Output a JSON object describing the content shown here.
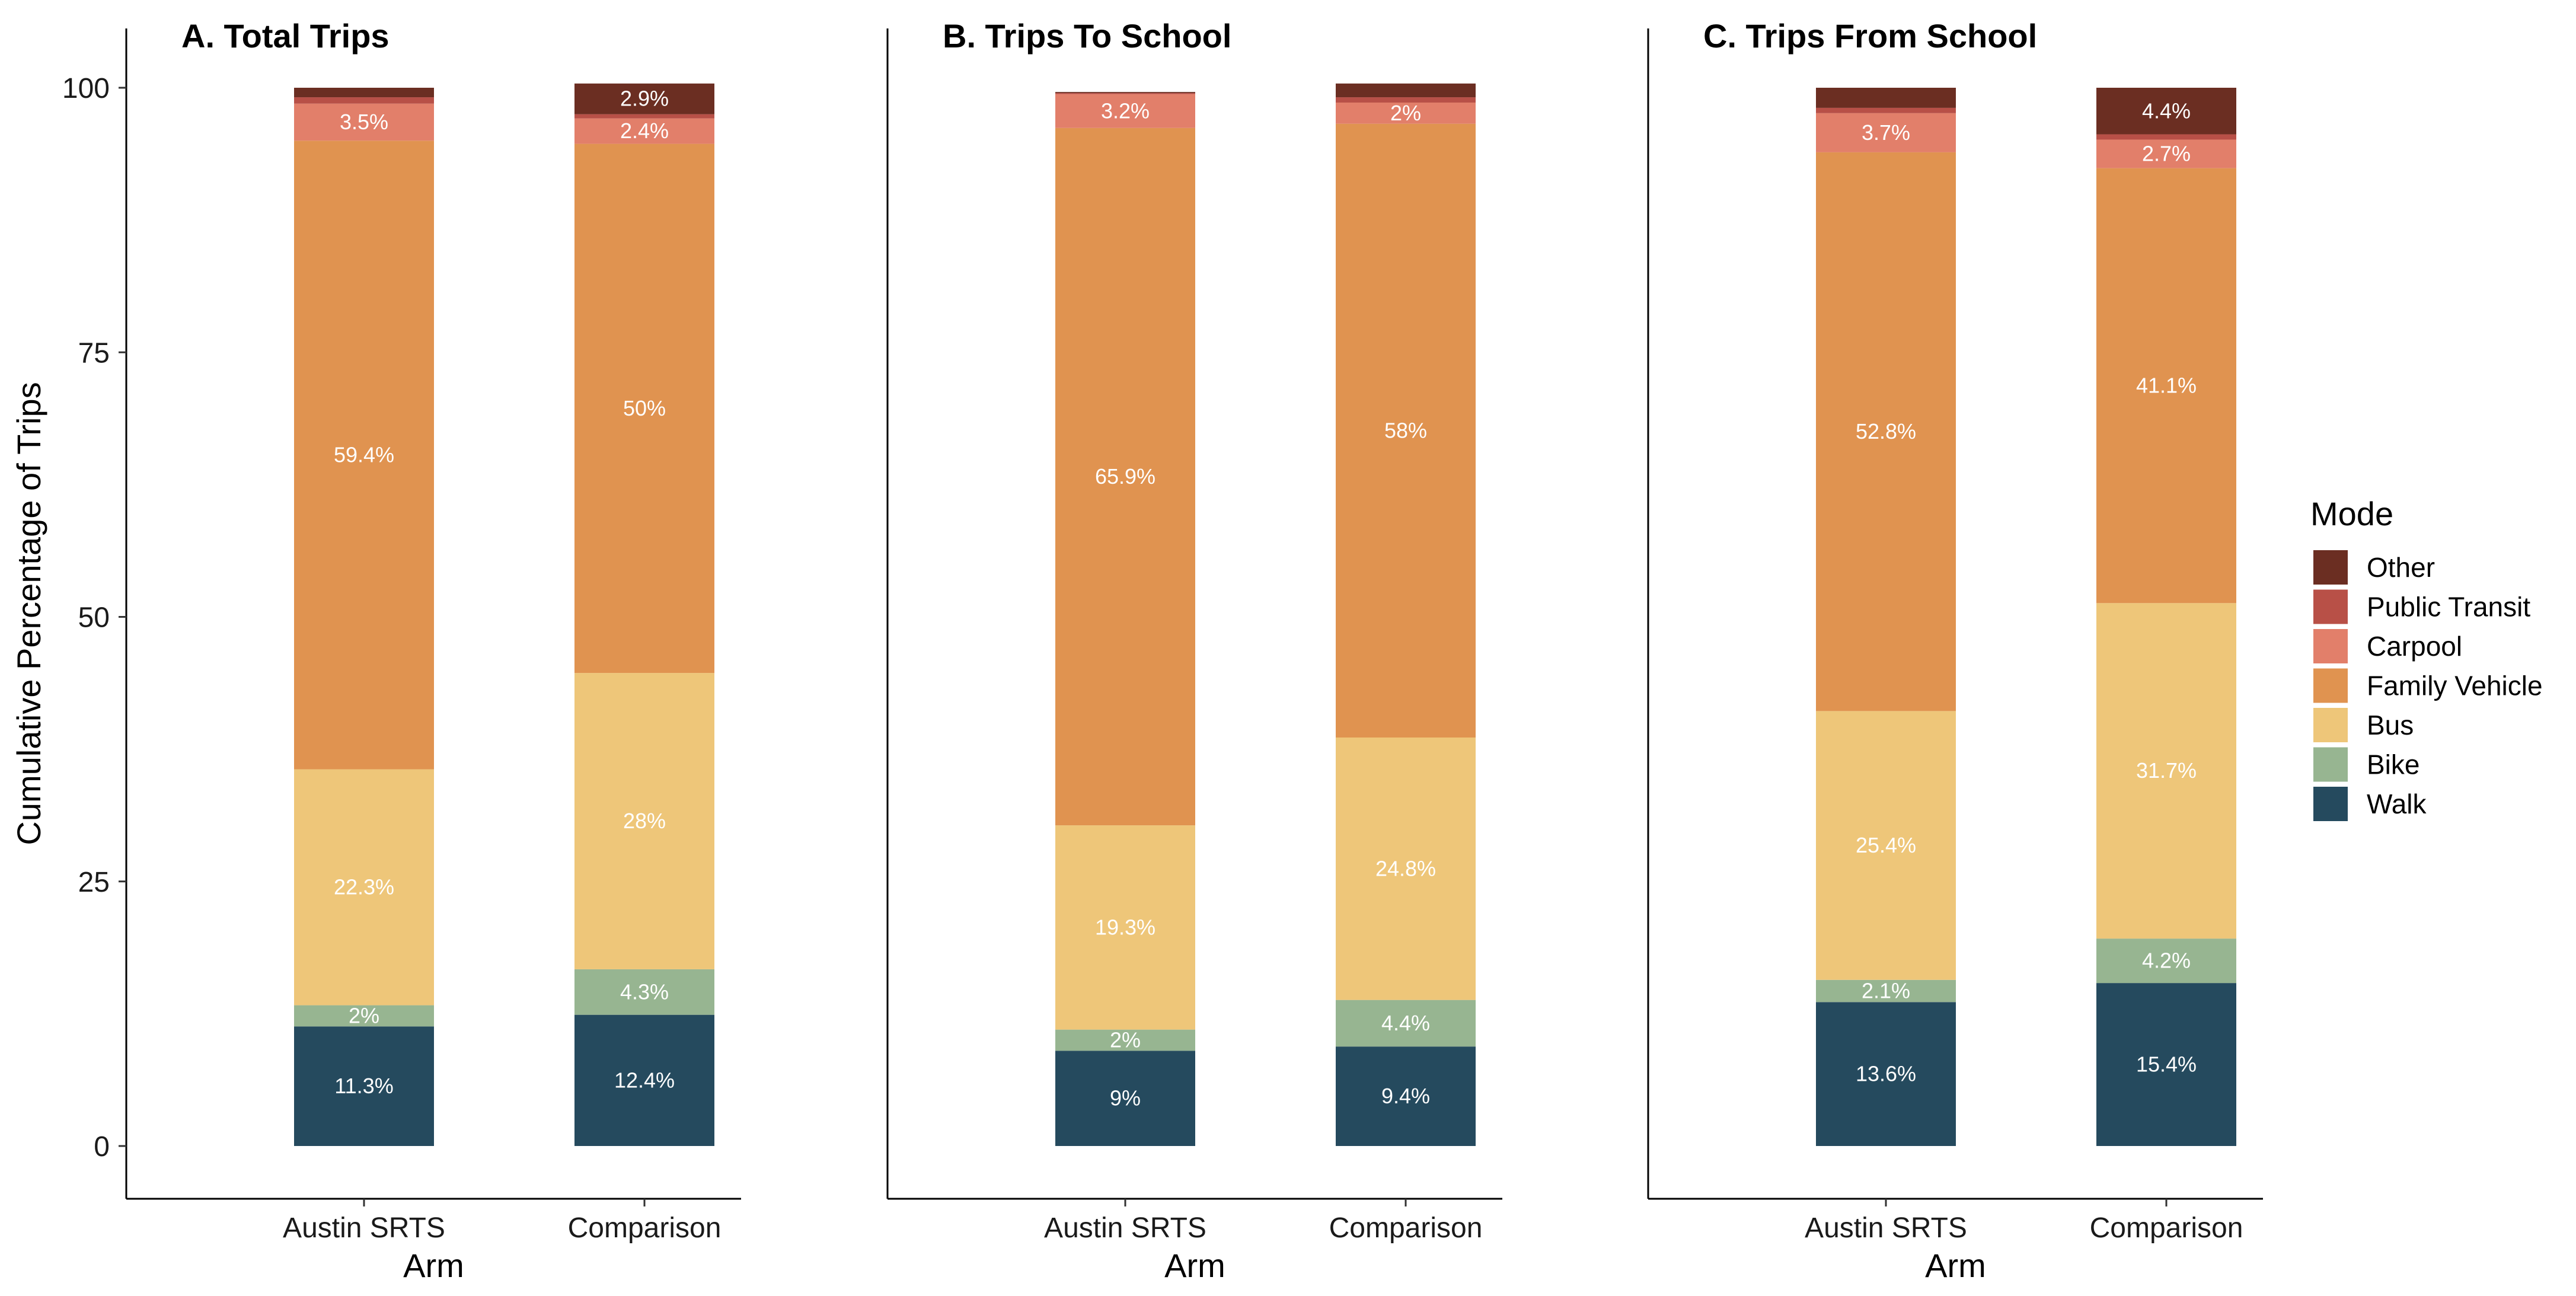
{
  "figure": {
    "ylabel": "Cumulative Percentage of Trips",
    "xlabel": "Arm",
    "legend_title": "Mode"
  },
  "chart_data": {
    "type": "bar",
    "stacked": true,
    "ylabel": "Cumulative Percentage of Trips",
    "xlabel": "Arm",
    "ylim": [
      0,
      100
    ],
    "yticks": [
      0,
      25,
      50,
      75,
      100
    ],
    "legend": {
      "title": "Mode",
      "placement": "right",
      "entries": [
        {
          "name": "Other",
          "color": "#6b2e22"
        },
        {
          "name": "Public Transit",
          "color": "#b85047"
        },
        {
          "name": "Carpool",
          "color": "#e27f6a"
        },
        {
          "name": "Family Vehicle",
          "color": "#e09350"
        },
        {
          "name": "Bus",
          "color": "#eec679"
        },
        {
          "name": "Bike",
          "color": "#97b591"
        },
        {
          "name": "Walk",
          "color": "#254a5e"
        }
      ]
    },
    "stack_order": [
      "Walk",
      "Bike",
      "Bus",
      "Family Vehicle",
      "Carpool",
      "Public Transit",
      "Other"
    ],
    "categories": [
      "Austin SRTS",
      "Comparison"
    ],
    "panels": [
      {
        "title": "A. Total Trips",
        "bars": [
          {
            "category": "Austin SRTS",
            "values": {
              "Walk": 11.3,
              "Bike": 2.0,
              "Bus": 22.3,
              "Family Vehicle": 59.4,
              "Carpool": 3.5,
              "Public Transit": 0.6,
              "Other": 0.9
            },
            "labels": {
              "Walk": "11.3%",
              "Bike": "2%",
              "Bus": "22.3%",
              "Family Vehicle": "59.4%",
              "Carpool": "3.5%"
            }
          },
          {
            "category": "Comparison",
            "values": {
              "Walk": 12.4,
              "Bike": 4.3,
              "Bus": 28.0,
              "Family Vehicle": 50.0,
              "Carpool": 2.4,
              "Public Transit": 0.4,
              "Other": 2.9
            },
            "labels": {
              "Walk": "12.4%",
              "Bike": "4.3%",
              "Bus": "28%",
              "Family Vehicle": "50%",
              "Carpool": "2.4%",
              "Other": "2.9%"
            }
          }
        ]
      },
      {
        "title": "B. Trips To School",
        "bars": [
          {
            "category": "Austin SRTS",
            "values": {
              "Walk": 9.0,
              "Bike": 2.0,
              "Bus": 19.3,
              "Family Vehicle": 65.9,
              "Carpool": 3.2,
              "Public Transit": 0.1,
              "Other": 0.1
            },
            "labels": {
              "Walk": "9%",
              "Bike": "2%",
              "Bus": "19.3%",
              "Family Vehicle": "65.9%",
              "Carpool": "3.2%"
            }
          },
          {
            "category": "Comparison",
            "values": {
              "Walk": 9.4,
              "Bike": 4.4,
              "Bus": 24.8,
              "Family Vehicle": 58.0,
              "Carpool": 2.0,
              "Public Transit": 0.5,
              "Other": 1.3
            },
            "labels": {
              "Walk": "9.4%",
              "Bike": "4.4%",
              "Bus": "24.8%",
              "Family Vehicle": "58%",
              "Carpool": "2%"
            }
          }
        ]
      },
      {
        "title": "C. Trips From School",
        "bars": [
          {
            "category": "Austin SRTS",
            "values": {
              "Walk": 13.6,
              "Bike": 2.1,
              "Bus": 25.4,
              "Family Vehicle": 52.8,
              "Carpool": 3.7,
              "Public Transit": 0.5,
              "Other": 1.9
            },
            "labels": {
              "Walk": "13.6%",
              "Bike": "2.1%",
              "Bus": "25.4%",
              "Family Vehicle": "52.8%",
              "Carpool": "3.7%"
            }
          },
          {
            "category": "Comparison",
            "values": {
              "Walk": 15.4,
              "Bike": 4.2,
              "Bus": 31.7,
              "Family Vehicle": 41.1,
              "Carpool": 2.7,
              "Public Transit": 0.5,
              "Other": 4.4
            },
            "labels": {
              "Walk": "15.4%",
              "Bike": "4.2%",
              "Bus": "31.7%",
              "Family Vehicle": "41.1%",
              "Carpool": "2.7%",
              "Other": "4.4%"
            }
          }
        ]
      }
    ]
  }
}
